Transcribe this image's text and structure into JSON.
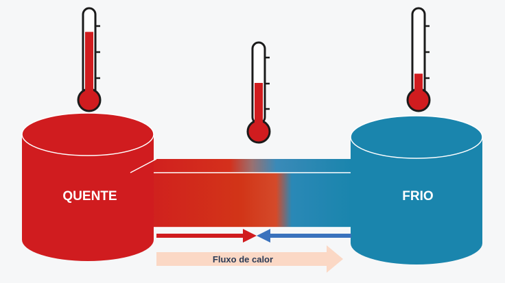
{
  "diagram": {
    "hot_reservoir": {
      "label": "QUENTE",
      "color": "#d01c1f"
    },
    "cold_reservoir": {
      "label": "FRIO",
      "color": "#1a85ad"
    },
    "heat_flow": {
      "label": "Fluxo de calor",
      "arrow_color": "#fbd8c5",
      "text_color": "#2b3a55"
    },
    "arrows": {
      "hot_side_color": "#d01c1f",
      "cold_side_color": "#3a72bd"
    },
    "thermometers": [
      {
        "name": "hot",
        "fill_level": 0.75
      },
      {
        "name": "middle",
        "fill_level": 0.5
      },
      {
        "name": "cold",
        "fill_level": 0.25
      }
    ]
  }
}
